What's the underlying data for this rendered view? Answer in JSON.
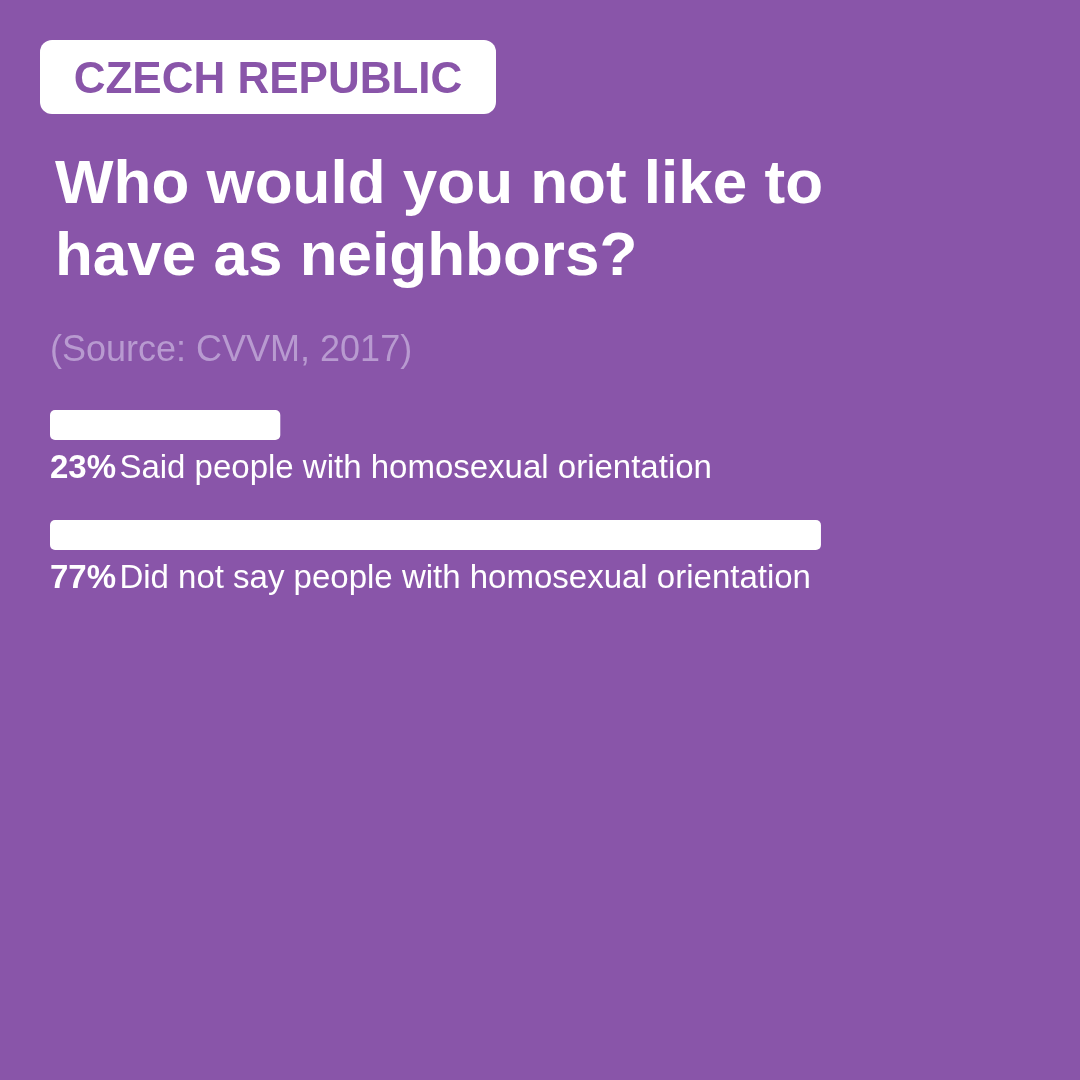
{
  "chart_data": {
    "type": "bar",
    "orientation": "horizontal",
    "subtitle": "CZECH REPUBLIC",
    "title": "Who would you not like to have as neighbors?",
    "annotations": [
      "(Source: CVVM, 2017)"
    ],
    "categories": [
      "Said people with homosexual orientation",
      "Did not say people with homosexual orientation"
    ],
    "values": [
      23,
      77
    ],
    "value_labels": [
      "23%",
      "77%"
    ],
    "color": "#ffffff",
    "tick_labels": false
  }
}
